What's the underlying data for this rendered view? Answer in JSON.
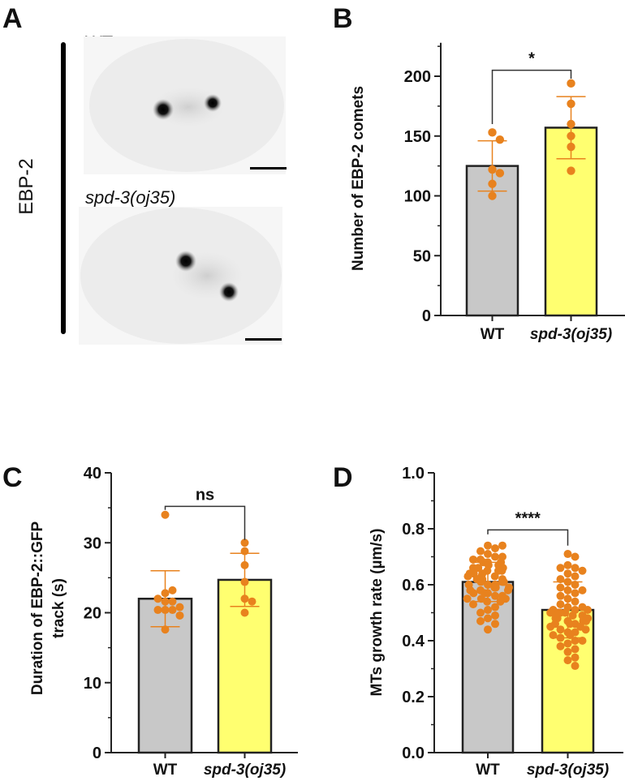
{
  "panel_letters": [
    "A",
    "B",
    "C",
    "D"
  ],
  "panel_a": {
    "row_label": "EBP-2",
    "image_labels": [
      "WT",
      "spd-3(oj35)"
    ]
  },
  "colors": {
    "wt_bar": "#c8c8c8",
    "mutant_bar": "#ffff70",
    "points": "#e8821e",
    "axis": "#222222"
  },
  "chart_data": [
    {
      "type": "bar",
      "panel": "B",
      "ylabel": [
        "Number of EBP-2 comets"
      ],
      "categories": [
        "WT",
        "spd-3(oj35)"
      ],
      "yticks": [
        "0",
        "50",
        "100",
        "150",
        "200"
      ],
      "ytick_values": [
        0,
        50,
        100,
        150,
        200
      ],
      "ylim": [
        0,
        228
      ],
      "significance": "*",
      "series": [
        {
          "name": "WT",
          "mean": 125,
          "sd": 21,
          "points": [
            153,
            147,
            122,
            119,
            110,
            100
          ]
        },
        {
          "name": "spd-3(oj35)",
          "mean": 157,
          "sd": 26,
          "points": [
            194,
            177,
            160,
            150,
            141,
            121
          ]
        }
      ]
    },
    {
      "type": "bar",
      "panel": "C",
      "ylabel": [
        "Duration of EBP-2::GFP",
        "track (s)"
      ],
      "categories": [
        "WT",
        "spd-3(oj35)"
      ],
      "yticks": [
        "0",
        "10",
        "20",
        "30",
        "40"
      ],
      "ytick_values": [
        0,
        10,
        20,
        30,
        40
      ],
      "ylim": [
        0,
        40
      ],
      "significance": "ns",
      "series": [
        {
          "name": "WT",
          "mean": 22.0,
          "sd": 4.0,
          "points": [
            34,
            22.8,
            21.6,
            20.4,
            20.4,
            21.6,
            20.4,
            23.2,
            22.0,
            20.8,
            19.6,
            17.6
          ]
        },
        {
          "name": "spd-3(oj35)",
          "mean": 24.7,
          "sd": 3.8,
          "points": [
            30,
            28.8,
            26.8,
            24.4,
            22.0,
            21.6,
            20.0
          ]
        }
      ]
    },
    {
      "type": "bar",
      "panel": "D",
      "ylabel": [
        "MTs growth rate (µm/s)"
      ],
      "categories": [
        "WT",
        "spd-3(oj35)"
      ],
      "yticks": [
        "0.0",
        "0.2",
        "0.4",
        "0.6",
        "0.8",
        "1.0"
      ],
      "ytick_values": [
        0,
        0.2,
        0.4,
        0.6,
        0.8,
        1.0
      ],
      "ylim": [
        0,
        1.0
      ],
      "significance": "****",
      "series": [
        {
          "name": "WT",
          "mean": 0.61,
          "sd": 0.07,
          "points": [
            0.74,
            0.73,
            0.72,
            0.74,
            0.71,
            0.7,
            0.7,
            0.69,
            0.69,
            0.68,
            0.68,
            0.68,
            0.67,
            0.67,
            0.66,
            0.66,
            0.66,
            0.65,
            0.65,
            0.65,
            0.64,
            0.64,
            0.64,
            0.63,
            0.63,
            0.63,
            0.62,
            0.62,
            0.62,
            0.62,
            0.61,
            0.61,
            0.61,
            0.6,
            0.6,
            0.6,
            0.6,
            0.59,
            0.59,
            0.59,
            0.59,
            0.58,
            0.58,
            0.58,
            0.57,
            0.57,
            0.57,
            0.56,
            0.56,
            0.55,
            0.55,
            0.55,
            0.54,
            0.54,
            0.53,
            0.52,
            0.51,
            0.5,
            0.49,
            0.48,
            0.47,
            0.46,
            0.44
          ]
        },
        {
          "name": "spd-3(oj35)",
          "mean": 0.51,
          "sd": 0.1,
          "points": [
            0.71,
            0.7,
            0.67,
            0.66,
            0.66,
            0.65,
            0.64,
            0.63,
            0.62,
            0.61,
            0.6,
            0.59,
            0.58,
            0.58,
            0.57,
            0.56,
            0.55,
            0.54,
            0.53,
            0.52,
            0.52,
            0.51,
            0.51,
            0.51,
            0.5,
            0.5,
            0.5,
            0.5,
            0.49,
            0.49,
            0.49,
            0.48,
            0.48,
            0.48,
            0.48,
            0.47,
            0.47,
            0.47,
            0.46,
            0.46,
            0.46,
            0.45,
            0.45,
            0.44,
            0.44,
            0.43,
            0.43,
            0.42,
            0.42,
            0.41,
            0.4,
            0.4,
            0.39,
            0.38,
            0.37,
            0.36,
            0.34,
            0.33,
            0.31
          ]
        }
      ]
    }
  ]
}
